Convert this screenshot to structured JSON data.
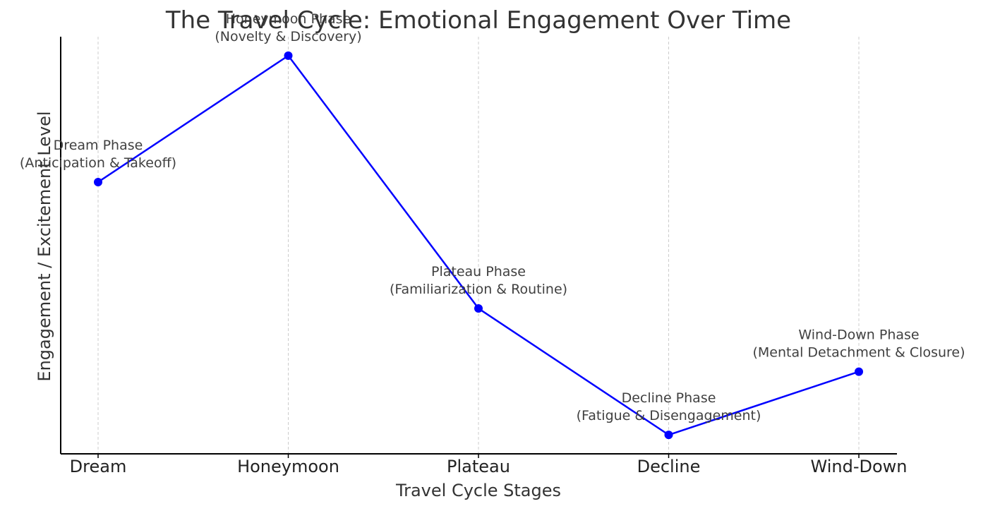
{
  "chart_data": {
    "type": "line",
    "title": "The Travel Cycle: Emotional Engagement Over Time",
    "xlabel": "Travel Cycle Stages",
    "ylabel": "Engagement / Excitement Level",
    "categories": [
      "Dream",
      "Honeymoon",
      "Plateau",
      "Decline",
      "Wind-Down"
    ],
    "series": [
      {
        "values": [
          7,
          10,
          4,
          1,
          2.5
        ]
      }
    ],
    "annotations": [
      {
        "line1": "Dream Phase",
        "line2": "(Anticipation & Takeoff)"
      },
      {
        "line1": "Honeymoon Phase",
        "line2": "(Novelty & Discovery)"
      },
      {
        "line1": "Plateau Phase",
        "line2": "(Familiarization & Routine)"
      },
      {
        "line1": "Decline Phase",
        "line2": "(Fatigue & Disengagement)"
      },
      {
        "line1": "Wind-Down Phase",
        "line2": "(Mental Detachment & Closure)"
      }
    ],
    "ylim": [
      0.55,
      10.45
    ],
    "grid": "vertical dashed",
    "line_color": "#0000ff",
    "marker_color": "#0000ff",
    "grid_color": "#cccccc",
    "axis_color": "#000000"
  }
}
